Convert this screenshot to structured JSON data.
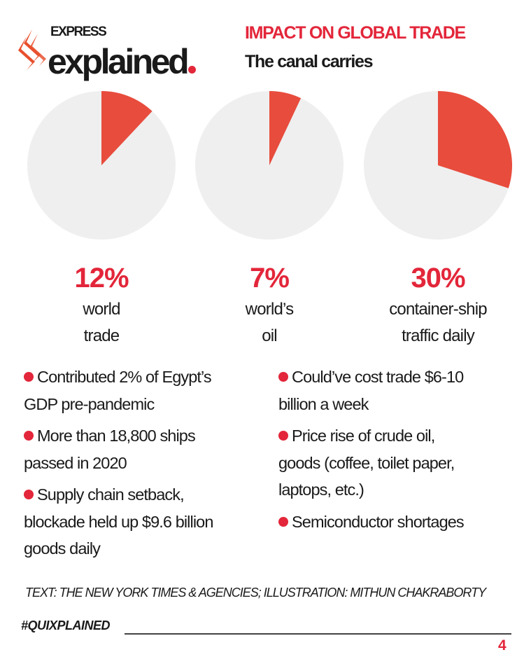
{
  "brand": {
    "top": "EXPRESS",
    "main": "explained",
    "accent": "#e3263a"
  },
  "header": {
    "title": "IMPACT ON GLOBAL TRADE",
    "subtitle": "The canal carries"
  },
  "chart_data": {
    "type": "pie",
    "colors": {
      "share": "#e84c3d",
      "rest": "#efefef"
    },
    "start": "12 o'clock, clockwise",
    "charts": [
      {
        "value": 12,
        "label": "12%",
        "caption": [
          "world",
          "trade"
        ]
      },
      {
        "value": 7,
        "label": "7%",
        "caption": [
          "world’s",
          "oil"
        ]
      },
      {
        "value": 30,
        "label": "30%",
        "caption": [
          "container-ship",
          "traffic daily"
        ]
      }
    ]
  },
  "bullets": {
    "left": [
      [
        "Contributed 2% of Egypt’s",
        "GDP pre-pandemic"
      ],
      [
        "More than 18,800 ships",
        "passed in 2020"
      ],
      [
        "Supply chain setback,",
        "blockade held up $9.6 billion",
        "goods daily"
      ]
    ],
    "right": [
      [
        "Could’ve cost trade $6-10",
        "billion a week"
      ],
      [
        "Price rise of crude oil,",
        "goods (coffee, toilet paper,",
        "laptops, etc.)"
      ],
      [
        "Semiconductor shortages"
      ]
    ]
  },
  "footer": {
    "credit": "TEXT: THE NEW YORK TIMES & AGENCIES; ILLUSTRATION: MITHUN CHAKRABORTY",
    "hashtag": "#QUIXPLAINED",
    "page": "4"
  }
}
